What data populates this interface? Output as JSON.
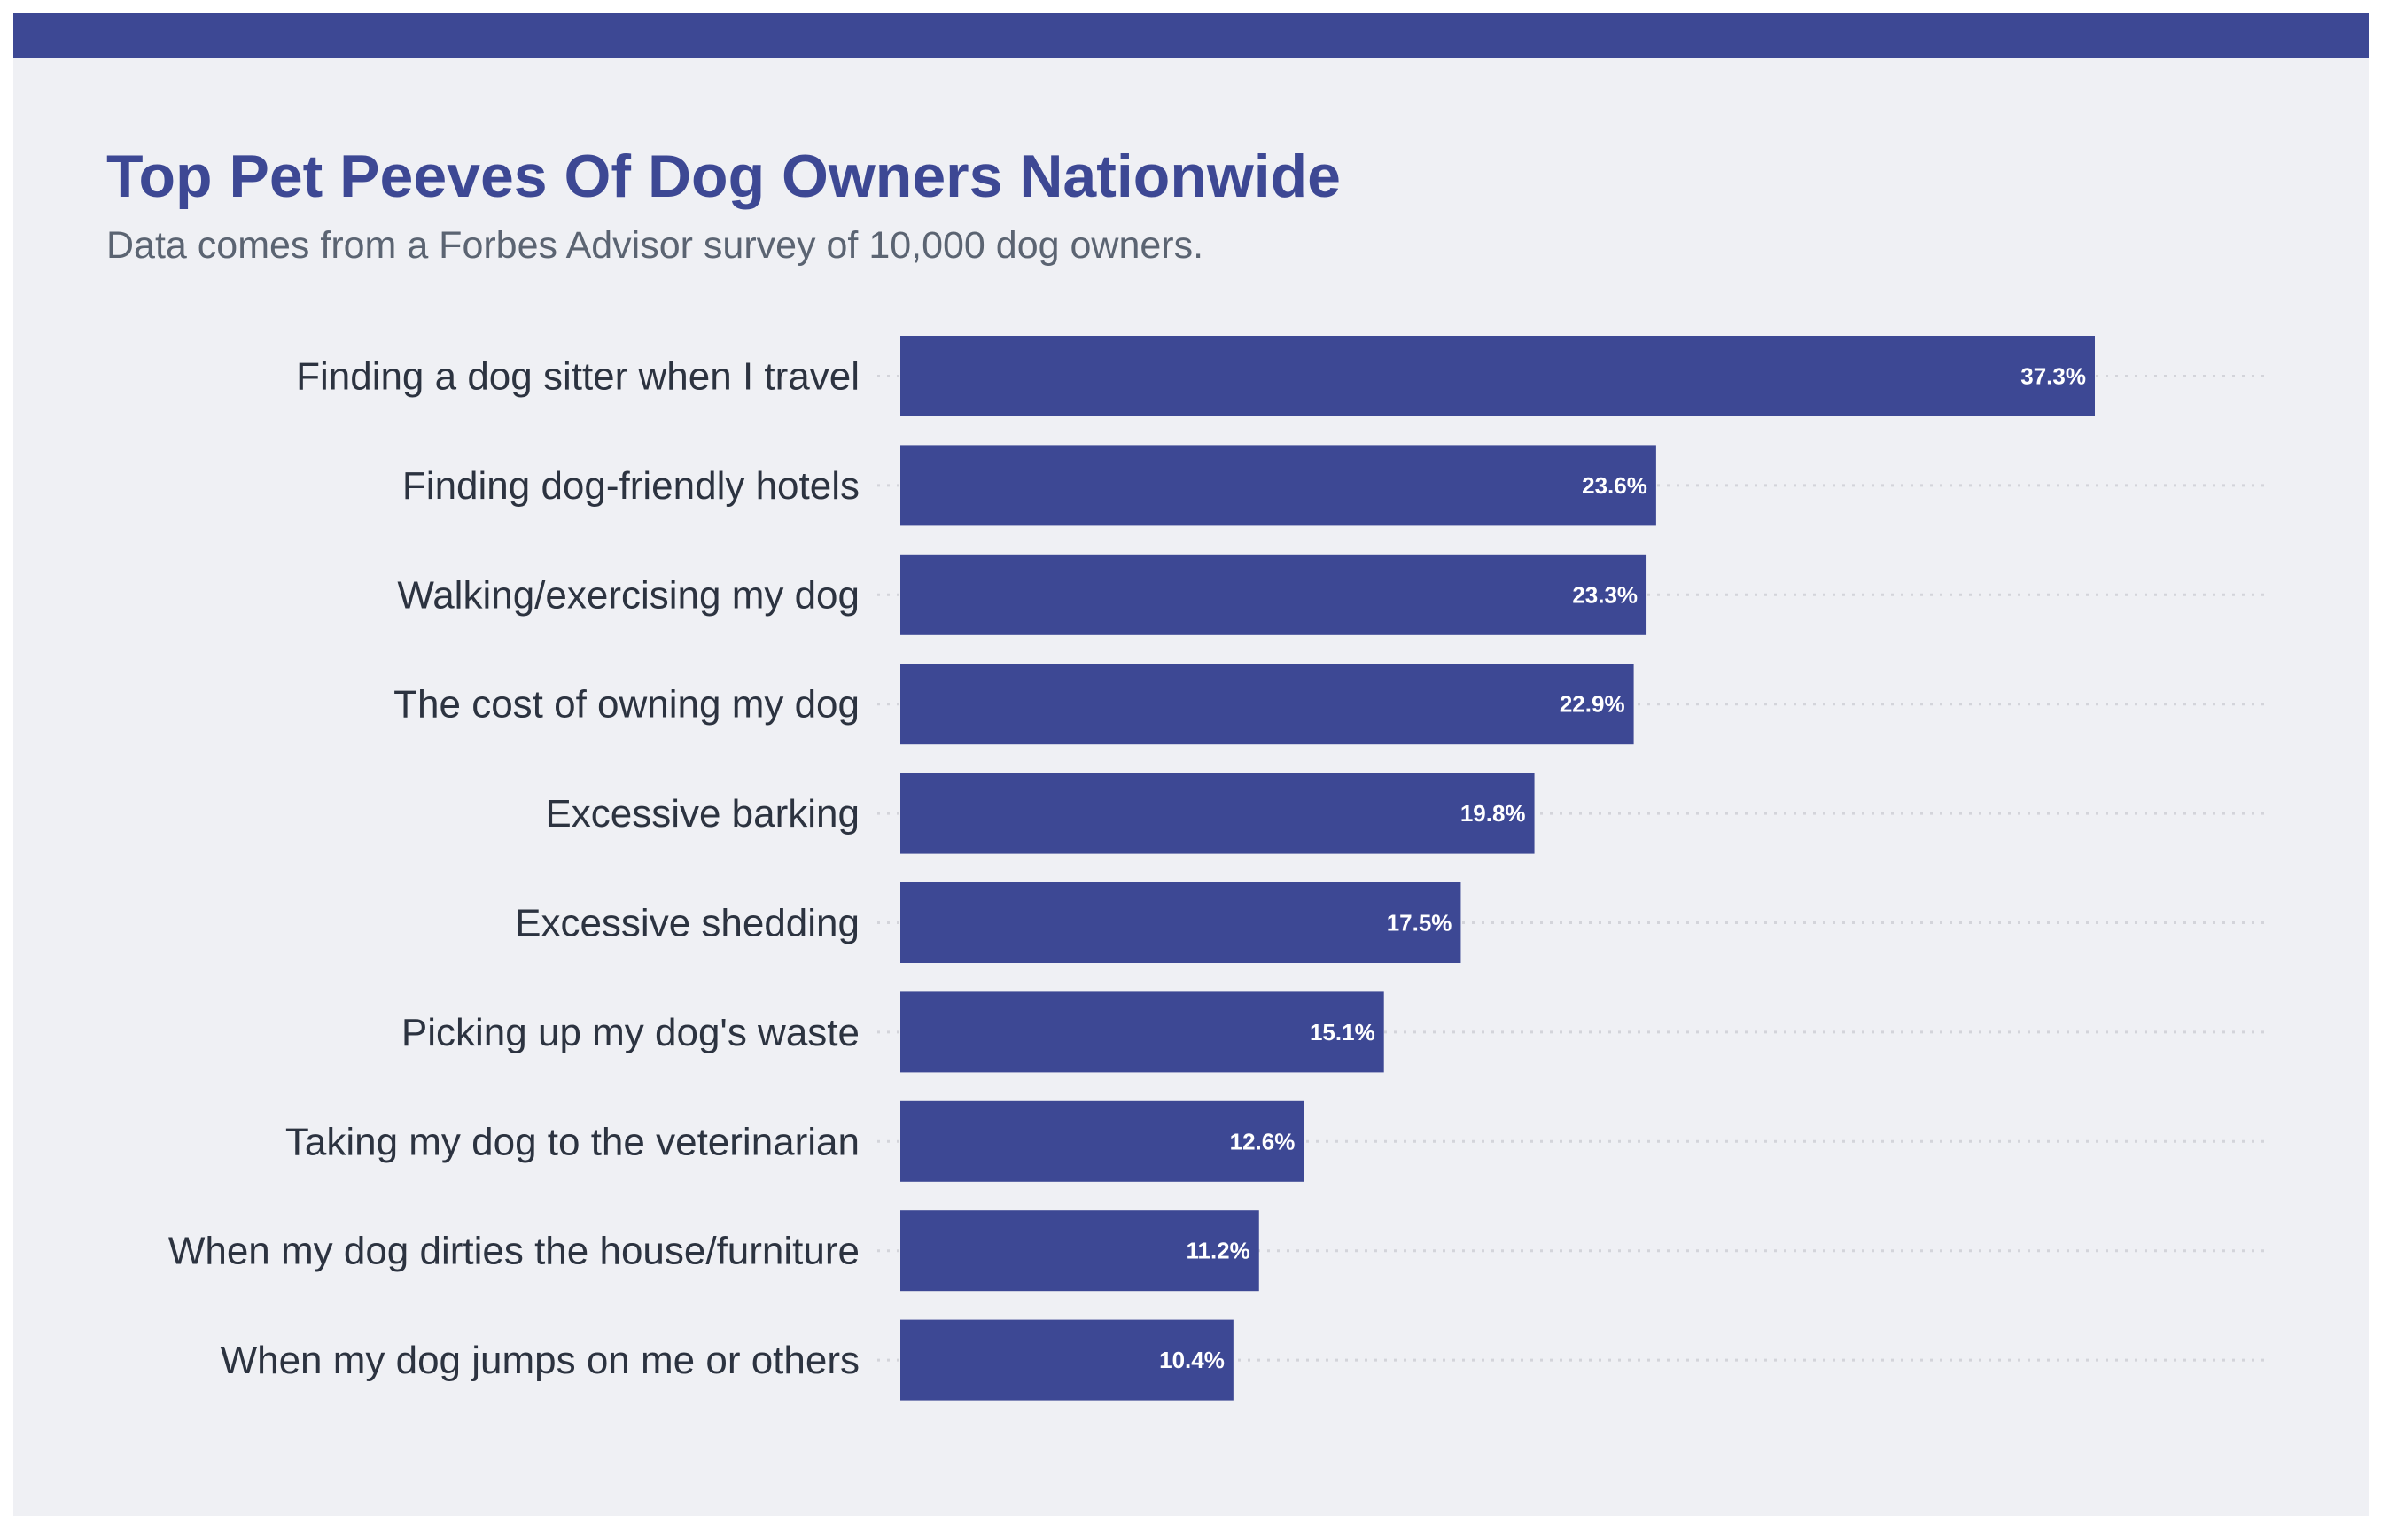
{
  "colors": {
    "bar": "#3d4894",
    "background": "#eff0f4",
    "grid": "#d3d4da",
    "title": "#3d4894"
  },
  "chart_data": {
    "type": "bar",
    "orientation": "horizontal",
    "title": "Top Pet Peeves Of Dog Owners Nationwide",
    "subtitle": "Data comes from a Forbes Advisor survey of 10,000 dog owners.",
    "xlabel": "",
    "ylabel": "",
    "xlim": [
      0,
      42.8
    ],
    "grid": "dotted horizontal",
    "categories": [
      "Finding a dog sitter when I travel",
      "Finding dog-friendly hotels",
      "Walking/exercising my dog",
      "The cost of owning my dog",
      "Excessive barking",
      "Excessive shedding",
      "Picking up my dog's waste",
      "Taking my dog to the veterinarian",
      "When my dog dirties the house/furniture",
      "When my dog jumps on me or others"
    ],
    "values": [
      37.3,
      23.6,
      23.3,
      22.9,
      19.8,
      17.5,
      15.1,
      12.6,
      11.2,
      10.4
    ],
    "value_labels": [
      "37.3%",
      "23.6%",
      "23.3%",
      "22.9%",
      "19.8%",
      "17.5%",
      "15.1%",
      "12.6%",
      "11.2%",
      "10.4%"
    ]
  }
}
